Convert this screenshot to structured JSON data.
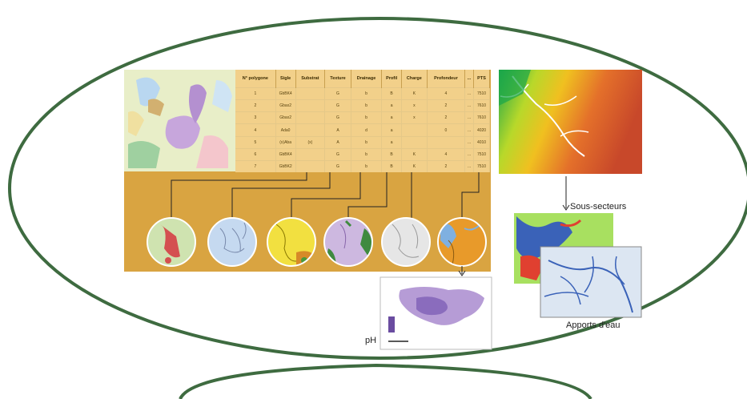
{
  "table": {
    "headers": [
      "N° polygone",
      "Sigle",
      "Substrat",
      "Texture",
      "Drainage",
      "Profil",
      "Charge",
      "Profondeur",
      "...",
      "PTS"
    ],
    "rows": [
      [
        "1",
        "GbBK4",
        "",
        "G",
        "b",
        "B",
        "K",
        "4",
        "...",
        "7510"
      ],
      [
        "2",
        "Gbax2",
        "",
        "G",
        "b",
        "a",
        "x",
        "2",
        "...",
        "7610"
      ],
      [
        "3",
        "Gbax2",
        "",
        "G",
        "b",
        "a",
        "x",
        "2",
        "...",
        "7610"
      ],
      [
        "4",
        "Ada0",
        "",
        "A",
        "d",
        "a",
        "",
        "0",
        "...",
        "4020"
      ],
      [
        "5",
        "(x)Aba",
        "(x)",
        "A",
        "b",
        "a",
        "",
        "",
        "...",
        "4010"
      ],
      [
        "6",
        "GbBK4",
        "",
        "G",
        "b",
        "B",
        "K",
        "4",
        "...",
        "7510"
      ],
      [
        "7",
        "GbBK2",
        "",
        "G",
        "b",
        "B",
        "K",
        "2",
        "...",
        "7510"
      ]
    ]
  },
  "labels": {
    "sous_secteurs": "Sous-secteurs",
    "apports": "Apports d'eau",
    "ph": "pH"
  },
  "colors": {
    "oval": "#3e6b40",
    "panel": "#d9a441",
    "table_bg": "#f2d08a",
    "thumbs": [
      "#cfe3b0",
      "#c5d9f0",
      "#f2e040",
      "#cdb8e0",
      "#e6e6e6",
      "#e89a2a"
    ]
  }
}
